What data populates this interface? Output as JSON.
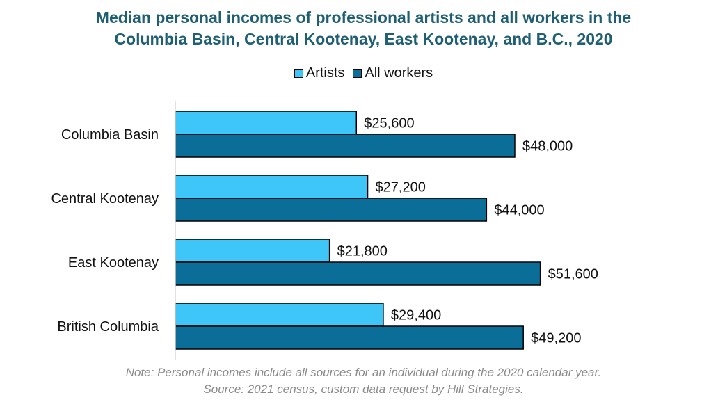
{
  "title_line1": "Median personal incomes of professional artists and all workers in the",
  "title_line2": "Columbia Basin, Central Kootenay, East Kootenay, and B.C., 2020",
  "note": "Note: Personal incomes include all sources for an individual during the 2020 calendar year.",
  "source": "Source: 2021 census, custom data request by Hill Strategies.",
  "colors": {
    "artists": "#3fc6f8",
    "all_workers": "#0b6e99",
    "title": "#1f5f73"
  },
  "chart_data": {
    "type": "bar",
    "orientation": "horizontal",
    "categories": [
      "Columbia Basin",
      "Central Kootenay",
      "East Kootenay",
      "British Columbia"
    ],
    "series": [
      {
        "name": "Artists",
        "values": [
          25600,
          27200,
          21800,
          29400
        ],
        "labels": [
          "$25,600",
          "$27,200",
          "$21,800",
          "$29,400"
        ]
      },
      {
        "name": "All workers",
        "values": [
          48000,
          44000,
          51600,
          49200
        ],
        "labels": [
          "$48,000",
          "$44,000",
          "$51,600",
          "$49,200"
        ]
      }
    ],
    "xlim": [
      0,
      60000
    ],
    "grid": false,
    "legend_position": "top"
  }
}
